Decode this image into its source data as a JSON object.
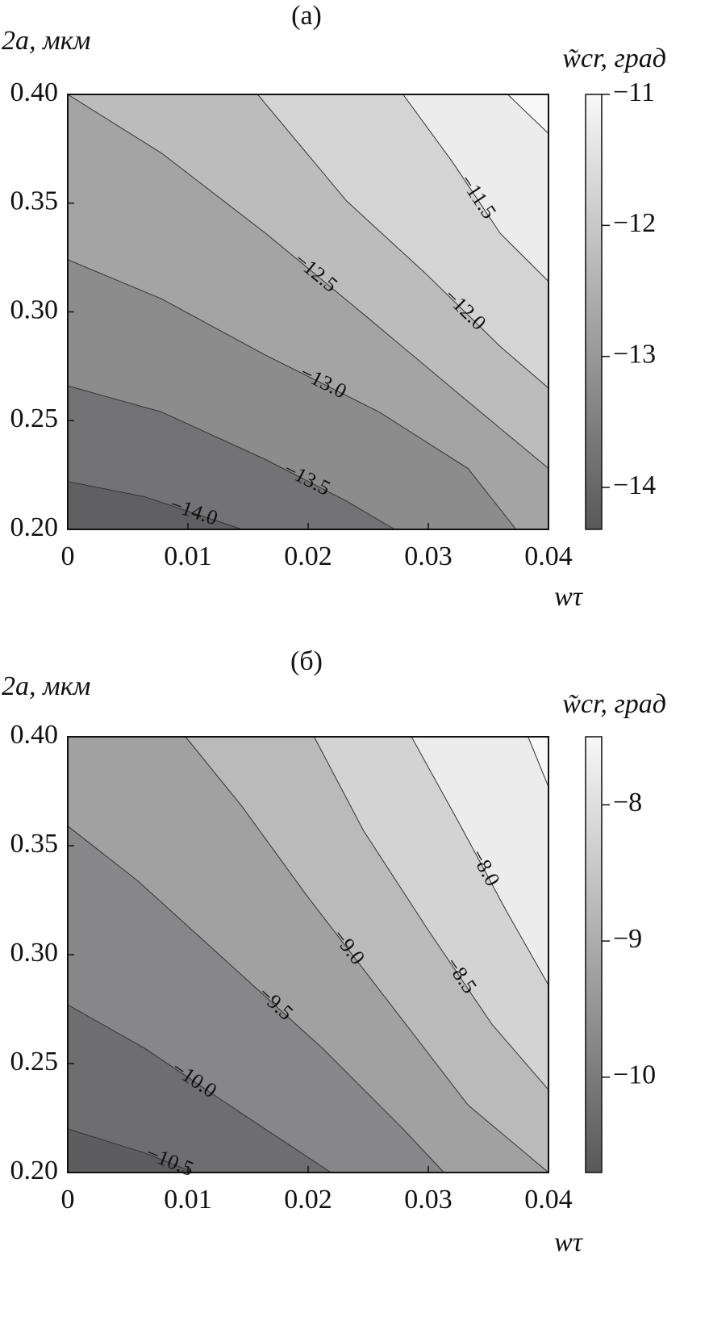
{
  "chart_data": [
    {
      "type": "contour",
      "title": "(а)",
      "ylabel": "2a, мкм",
      "xlabel": "wτ",
      "colorbar_label": "w̃cr, град",
      "xlim": [
        0,
        0.04
      ],
      "ylim": [
        0.2,
        0.4
      ],
      "xticks": [
        0,
        0.01,
        0.02,
        0.03,
        0.04
      ],
      "yticks": [
        {
          "value": 0.2,
          "label": "0.20"
        },
        0.25,
        {
          "value": 0.3,
          "label": "0.30"
        },
        0.35,
        {
          "value": 0.4,
          "label": "0.40"
        }
      ],
      "clim": [
        -14.32,
        -11
      ],
      "colormap": [
        "#58585a",
        "#f8f8f8"
      ],
      "cticks": [
        {
          "value": -14,
          "label": "−14"
        },
        {
          "value": -13,
          "label": "−13"
        },
        {
          "value": -12,
          "label": "−12"
        },
        {
          "value": -11,
          "label": "−11"
        }
      ],
      "contours": [
        {
          "level": {
            "value": -14,
            "label": "−14.0"
          },
          "x": [
            0,
            0.0064,
            0.0145
          ],
          "y": [
            0.222,
            0.215,
            0.2
          ]
        },
        {
          "level": {
            "value": -13.5,
            "label": "−13.5"
          },
          "x": [
            0,
            0.0078,
            0.0165,
            0.0232,
            0.0272
          ],
          "y": [
            0.266,
            0.254,
            0.232,
            0.213,
            0.2
          ]
        },
        {
          "level": {
            "value": -13,
            "label": "−13.0"
          },
          "x": [
            0,
            0.0078,
            0.0165,
            0.0259,
            0.0333,
            0.0373
          ],
          "y": [
            0.324,
            0.306,
            0.28,
            0.254,
            0.228,
            0.2
          ]
        },
        {
          "level": {
            "value": -12.5,
            "label": "−12.5"
          },
          "x": [
            0,
            0.0078,
            0.0165,
            0.0246,
            0.0326,
            0.04
          ],
          "y": [
            0.4,
            0.373,
            0.336,
            0.299,
            0.262,
            0.228
          ]
        },
        {
          "level": {
            "value": -12,
            "label": "−12.0"
          },
          "x": [
            0.0158,
            0.0232,
            0.0299,
            0.036,
            0.04
          ],
          "y": [
            0.4,
            0.351,
            0.317,
            0.284,
            0.265
          ]
        },
        {
          "level": {
            "value": -11.5,
            "label": "−11.5"
          },
          "x": [
            0.0279,
            0.032,
            0.036,
            0.04
          ],
          "y": [
            0.4,
            0.369,
            0.336,
            0.314
          ]
        },
        {
          "level": -11,
          "x": [
            0.0366,
            0.04
          ],
          "y": [
            0.4,
            0.382
          ]
        }
      ]
    },
    {
      "type": "contour",
      "title": "(б)",
      "ylabel": "2a, мкм",
      "xlabel": "wτ",
      "colorbar_label": "w̃cr, град",
      "xlim": [
        0,
        0.04
      ],
      "ylim": [
        0.2,
        0.4
      ],
      "xticks": [
        0,
        0.01,
        0.02,
        0.03,
        0.04
      ],
      "yticks": [
        {
          "value": 0.2,
          "label": "0.20"
        },
        0.25,
        {
          "value": 0.3,
          "label": "0.30"
        },
        0.35,
        {
          "value": 0.4,
          "label": "0.40"
        }
      ],
      "clim": [
        -10.7,
        -7.5
      ],
      "colormap": [
        "#58585a",
        "#f8f8f8"
      ],
      "cticks": [
        {
          "value": -10,
          "label": "−10"
        },
        {
          "value": -9,
          "label": "−9"
        },
        {
          "value": -8,
          "label": "−8"
        }
      ],
      "contours": [
        {
          "level": {
            "value": -10.5,
            "label": "−10.5"
          },
          "x": [
            0,
            0.0064,
            0.0105
          ],
          "y": [
            0.22,
            0.209,
            0.2
          ]
        },
        {
          "level": {
            "value": -10,
            "label": "−10.0"
          },
          "x": [
            0,
            0.0064,
            0.0145,
            0.0219
          ],
          "y": [
            0.277,
            0.257,
            0.227,
            0.2
          ]
        },
        {
          "level": {
            "value": -9.5,
            "label": "−9.5"
          },
          "x": [
            0,
            0.0058,
            0.0132,
            0.0212,
            0.0279,
            0.0313
          ],
          "y": [
            0.359,
            0.334,
            0.297,
            0.257,
            0.22,
            0.2
          ]
        },
        {
          "level": {
            "value": -9,
            "label": "−9.0"
          },
          "x": [
            0.0098,
            0.0145,
            0.0199,
            0.0266,
            0.0333,
            0.04
          ],
          "y": [
            0.4,
            0.368,
            0.327,
            0.279,
            0.231,
            0.2
          ]
        },
        {
          "level": {
            "value": -8.5,
            "label": "−8.5"
          },
          "x": [
            0.0205,
            0.0246,
            0.0299,
            0.0353,
            0.04
          ],
          "y": [
            0.4,
            0.357,
            0.312,
            0.268,
            0.238
          ]
        },
        {
          "level": {
            "value": -8,
            "label": "−8.0"
          },
          "x": [
            0.0286,
            0.0326,
            0.0366,
            0.04
          ],
          "y": [
            0.4,
            0.36,
            0.319,
            0.286
          ]
        },
        {
          "level": -7.5,
          "x": [
            0.0383,
            0.04
          ],
          "y": [
            0.4,
            0.377
          ]
        }
      ]
    }
  ]
}
